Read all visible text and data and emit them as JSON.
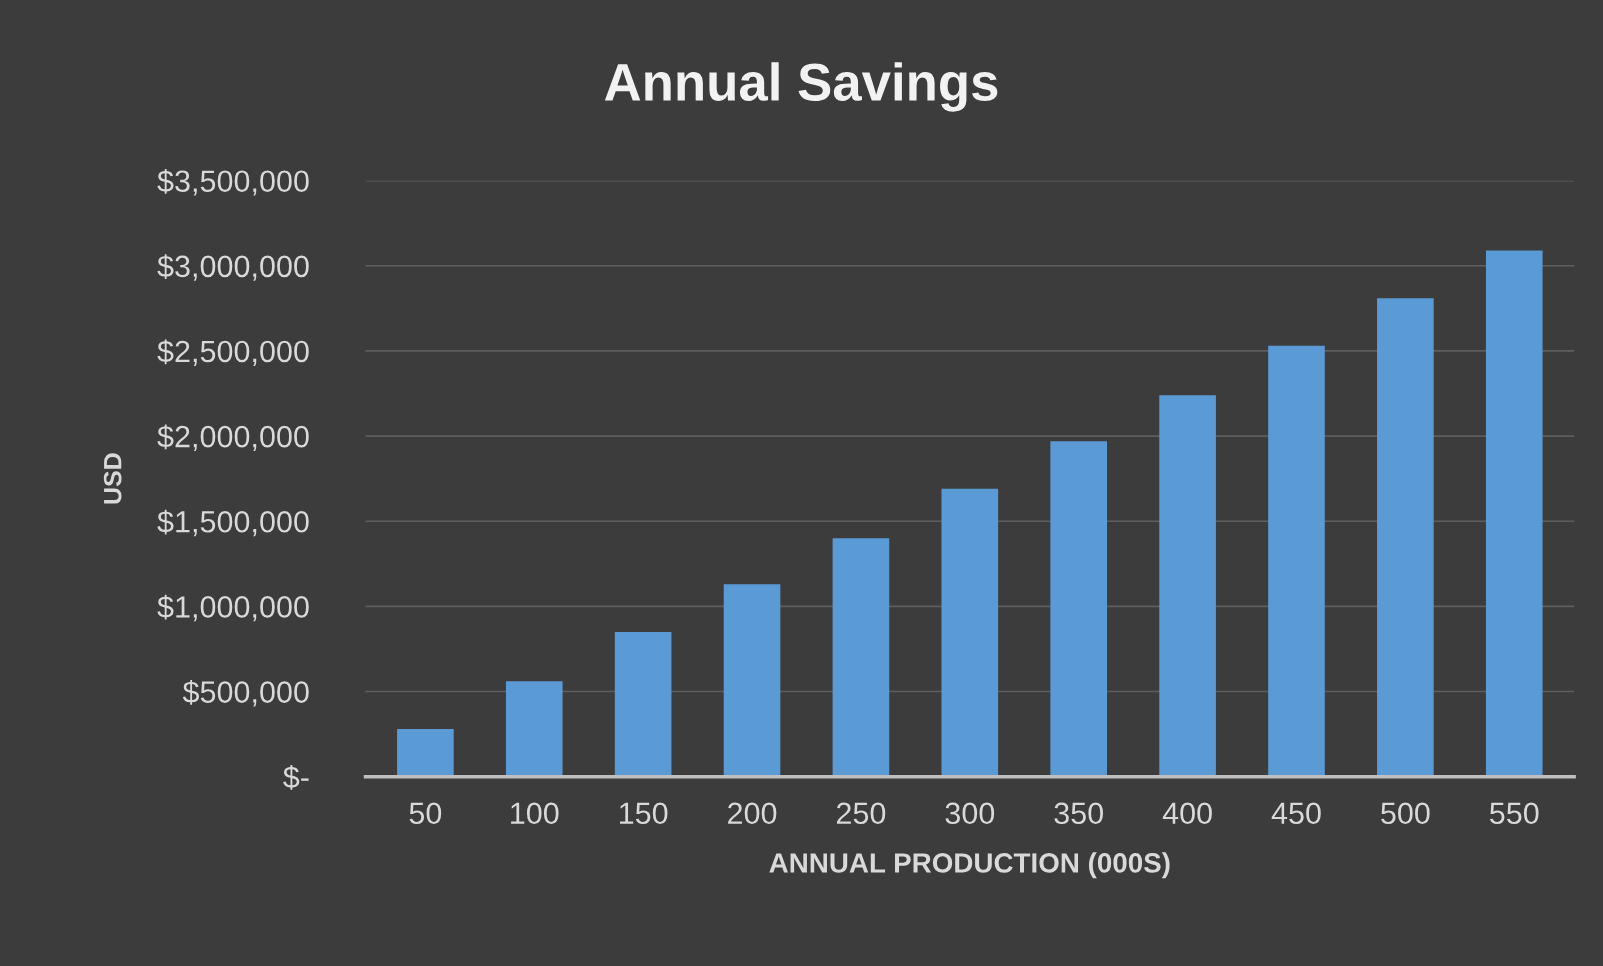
{
  "chart_data": {
    "type": "bar",
    "title": "Annual Savings",
    "xlabel": "ANNUAL PRODUCTION (000S)",
    "ylabel": "USD",
    "categories": [
      "50",
      "100",
      "150",
      "200",
      "250",
      "300",
      "350",
      "400",
      "450",
      "500",
      "550"
    ],
    "values": [
      280000,
      560000,
      850000,
      1130000,
      1400000,
      1690000,
      1970000,
      2240000,
      2530000,
      2810000,
      3090000
    ],
    "color": "#5b9bd5",
    "ylim": [
      0,
      3500000
    ],
    "yticks": [
      {
        "value": 0,
        "label": "$-"
      },
      {
        "value": 500000,
        "label": "$500,000"
      },
      {
        "value": 1000000,
        "label": "$1,000,000"
      },
      {
        "value": 1500000,
        "label": "$1,500,000"
      },
      {
        "value": 2000000,
        "label": "$2,000,000"
      },
      {
        "value": 2500000,
        "label": "$2,500,000"
      },
      {
        "value": 3000000,
        "label": "$3,000,000"
      },
      {
        "value": 3500000,
        "label": "$3,500,000"
      }
    ],
    "grid": "y",
    "legend": false
  }
}
